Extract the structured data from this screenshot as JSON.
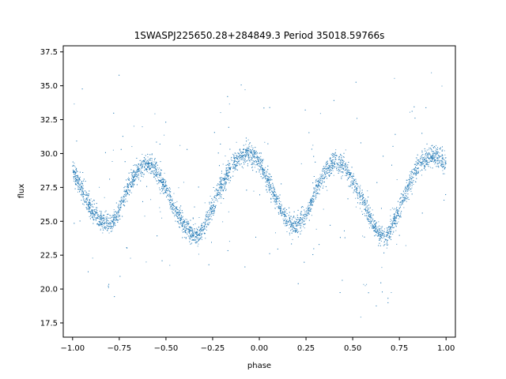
{
  "chart_data": {
    "type": "scatter",
    "title": "1SWASPJ225650.28+284849.3 Period 35018.59766s",
    "xlabel": "phase",
    "ylabel": "flux",
    "xlim": [
      -1.05,
      1.05
    ],
    "ylim": [
      16.45,
      37.95
    ],
    "xticks": [
      -1.0,
      -0.75,
      -0.5,
      -0.25,
      0.0,
      0.25,
      0.5,
      0.75,
      1.0
    ],
    "xtick_labels": [
      "−1.00",
      "−0.75",
      "−0.50",
      "−0.25",
      "0.00",
      "0.25",
      "0.50",
      "0.75",
      "1.00"
    ],
    "yticks": [
      17.5,
      20.0,
      22.5,
      25.0,
      27.5,
      30.0,
      32.5,
      35.0,
      37.5
    ],
    "ytick_labels": [
      "17.5",
      "20.0",
      "22.5",
      "25.0",
      "27.5",
      "30.0",
      "32.5",
      "35.0",
      "37.5"
    ],
    "grid": false,
    "marker_color": "#1f77b4",
    "series": [
      {
        "x": [
          -1.0,
          -0.95,
          -0.9,
          -0.85,
          -0.8,
          -0.75,
          -0.7,
          -0.65,
          -0.6,
          -0.55,
          -0.5,
          -0.45,
          -0.4,
          -0.35,
          -0.33,
          -0.3,
          -0.25,
          -0.2,
          -0.15,
          -0.1,
          -0.05,
          0.0,
          0.05,
          0.1,
          0.15,
          0.2,
          0.25,
          0.3,
          0.35,
          0.4,
          0.45,
          0.5,
          0.55,
          0.6,
          0.65,
          0.68,
          0.7,
          0.75,
          0.8,
          0.85,
          0.9,
          0.95,
          1.0
        ],
        "y": [
          28.8,
          27.3,
          25.9,
          25.0,
          24.7,
          25.8,
          27.6,
          28.8,
          29.3,
          28.7,
          27.3,
          25.8,
          24.6,
          23.9,
          23.9,
          24.4,
          26.0,
          27.8,
          29.0,
          29.8,
          30.0,
          29.4,
          27.9,
          26.2,
          24.9,
          24.6,
          25.5,
          27.2,
          28.6,
          29.4,
          29.1,
          28.0,
          26.7,
          25.0,
          23.9,
          23.9,
          24.3,
          25.9,
          27.7,
          29.0,
          29.7,
          29.8,
          29.2
        ]
      }
    ]
  }
}
